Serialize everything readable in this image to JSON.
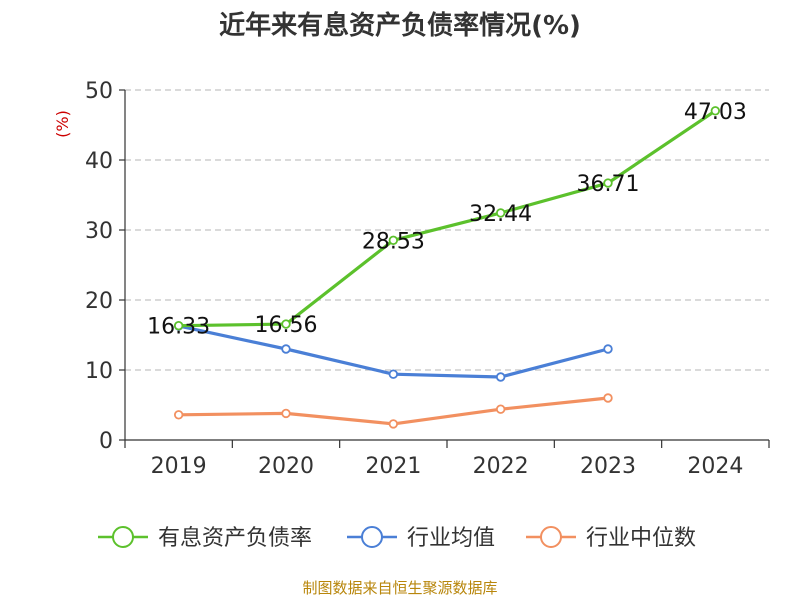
{
  "chart_data": {
    "type": "line",
    "title": "近年来有息资产负债率情况(%)",
    "ylabel": "(%)",
    "categories": [
      "2019",
      "2020",
      "2021",
      "2022",
      "2023",
      "2024"
    ],
    "ylim": [
      0,
      50
    ],
    "yticks": [
      0,
      10,
      20,
      30,
      40,
      50
    ],
    "grid": true,
    "legend_position": "bottom",
    "series": [
      {
        "name": "有息资产负债率",
        "color": "#5cc12c",
        "values": [
          16.33,
          16.56,
          28.53,
          32.44,
          36.71,
          47.03
        ],
        "labels": [
          "16.33",
          "16.56",
          "28.53",
          "32.44",
          "36.71",
          "47.03"
        ]
      },
      {
        "name": "行业均值",
        "color": "#4a7fd6",
        "values": [
          16.3,
          13.0,
          9.4,
          9.0,
          13.0,
          null
        ]
      },
      {
        "name": "行业中位数",
        "color": "#f29060",
        "values": [
          3.6,
          3.8,
          2.3,
          4.4,
          6.0,
          null
        ]
      }
    ]
  },
  "footer": {
    "source": "制图数据来自恒生聚源数据库"
  }
}
